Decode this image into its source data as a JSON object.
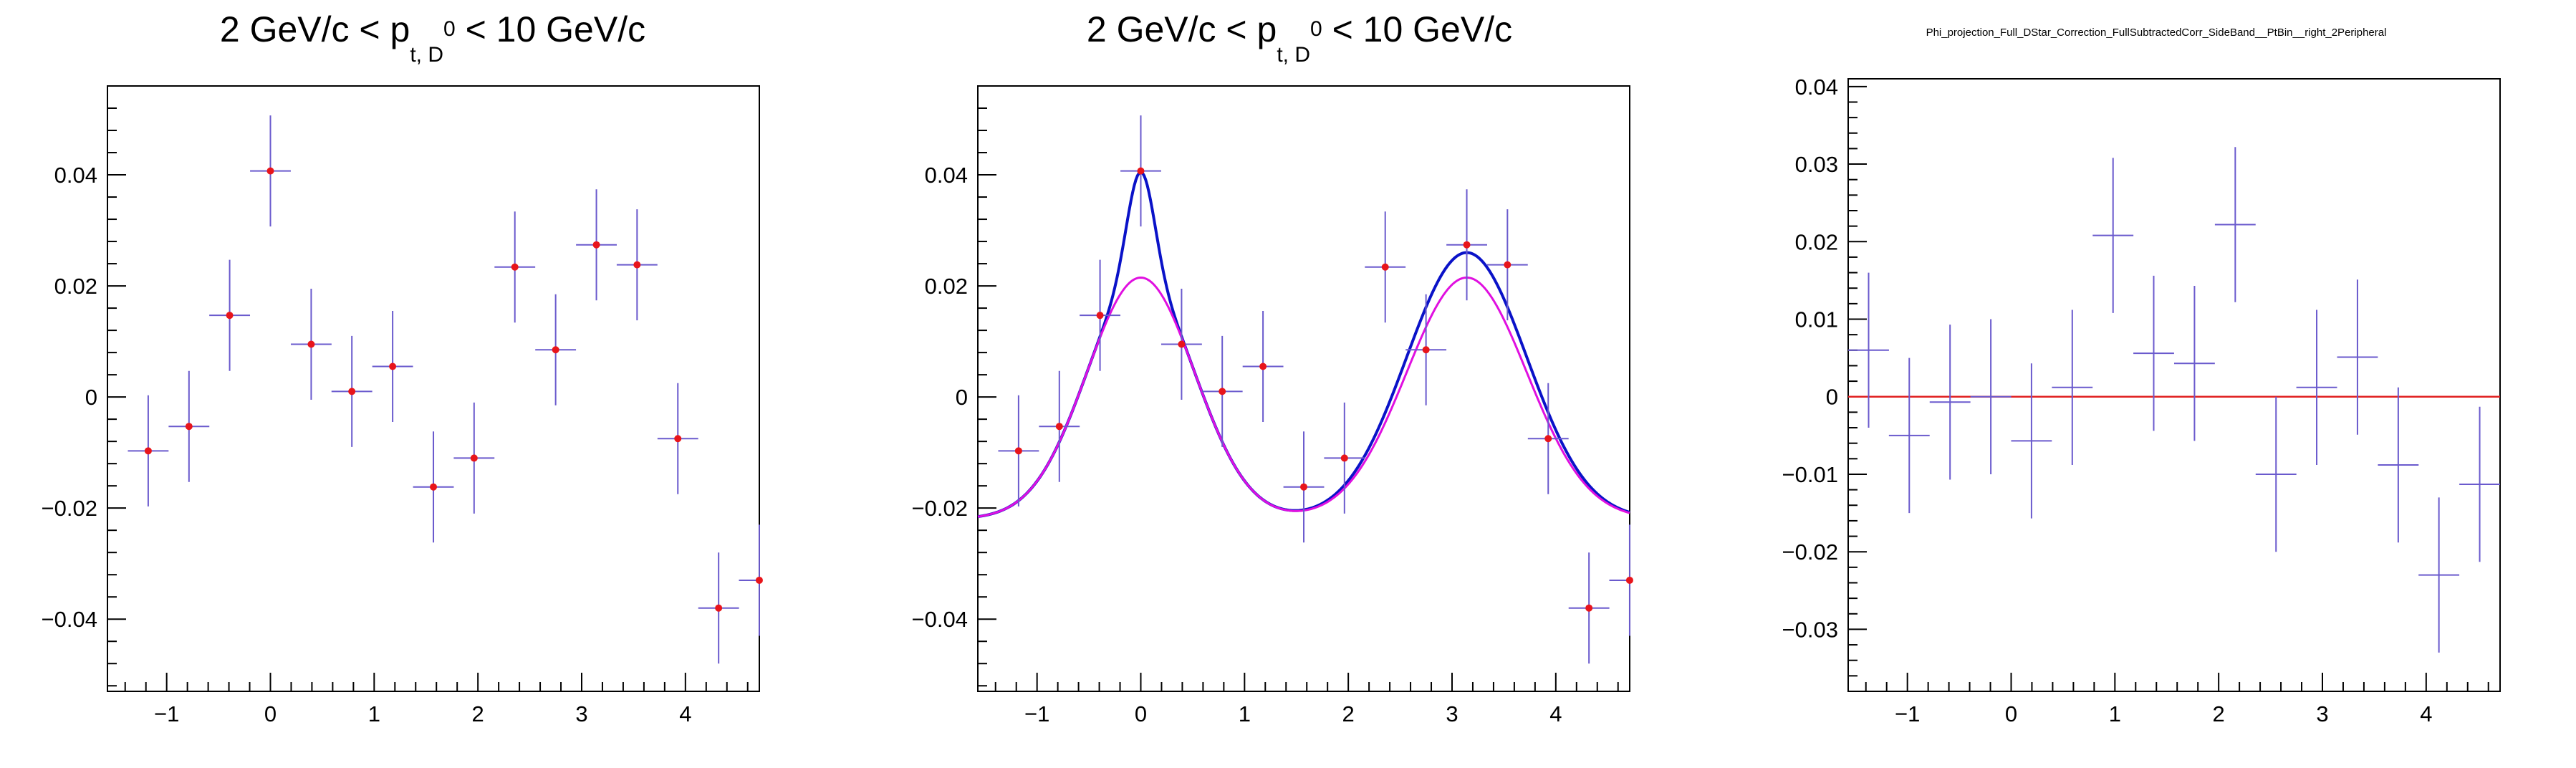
{
  "chart_data": [
    {
      "type": "scatter",
      "title": "2 GeV/c < p",
      "title_subscript": "t, D",
      "title_superscript": "0",
      "title_suffix": " < 10 GeV/c",
      "xlim": [
        -1.5708,
        4.7124
      ],
      "ylim": [
        -0.053,
        0.056
      ],
      "xticks": [
        -1,
        0,
        1,
        2,
        3,
        4
      ],
      "xtick_labels": [
        "−1",
        "0",
        "1",
        "2",
        "3",
        "4"
      ],
      "yticks": [
        -0.04,
        -0.02,
        0,
        0.02,
        0.04
      ],
      "ytick_labels": [
        "−0.04",
        "−0.02",
        "0",
        "0.02",
        "0.04"
      ],
      "bin_half_width": 0.1963,
      "marker_color": "#e8151b",
      "error_color": "#6a5acd",
      "series": [
        {
          "x": [
            -1.178,
            -0.785,
            -0.393,
            0.0,
            0.393,
            0.785,
            1.178,
            1.571,
            1.963,
            2.356,
            2.749,
            3.142,
            3.534,
            3.927,
            4.32,
            4.712
          ],
          "values": [
            -0.0097,
            -0.0053,
            0.0147,
            0.0407,
            0.0095,
            0.001,
            0.0055,
            -0.0162,
            -0.011,
            0.0234,
            0.0085,
            0.0274,
            0.0238,
            -0.0075,
            -0.038,
            -0.033
          ],
          "errors": [
            0.01,
            0.01,
            0.01,
            0.01,
            0.01,
            0.01,
            0.01,
            0.01,
            0.01,
            0.01,
            0.01,
            0.01,
            0.01,
            0.01,
            0.01,
            0.01
          ]
        }
      ]
    },
    {
      "type": "scatter",
      "title": "2 GeV/c < p",
      "title_subscript": "t, D",
      "title_superscript": "0",
      "title_suffix": " < 10 GeV/c",
      "xlim": [
        -1.5708,
        4.7124
      ],
      "ylim": [
        -0.053,
        0.056
      ],
      "xticks": [
        -1,
        0,
        1,
        2,
        3,
        4
      ],
      "xtick_labels": [
        "−1",
        "0",
        "1",
        "2",
        "3",
        "4"
      ],
      "yticks": [
        -0.04,
        -0.02,
        0,
        0.02,
        0.04
      ],
      "ytick_labels": [
        "−0.04",
        "−0.02",
        "0",
        "0.02",
        "0.04"
      ],
      "bin_half_width": 0.1963,
      "marker_color": "#e8151b",
      "error_color": "#6a5acd",
      "series": [
        {
          "x": [
            -1.178,
            -0.785,
            -0.393,
            0.0,
            0.393,
            0.785,
            1.178,
            1.571,
            1.963,
            2.356,
            2.749,
            3.142,
            3.534,
            3.927,
            4.32,
            4.712
          ],
          "values": [
            -0.0097,
            -0.0053,
            0.0147,
            0.0407,
            0.0095,
            0.001,
            0.0055,
            -0.0162,
            -0.011,
            0.0234,
            0.0085,
            0.0274,
            0.0238,
            -0.0075,
            -0.038,
            -0.033
          ],
          "errors": [
            0.01,
            0.01,
            0.01,
            0.01,
            0.01,
            0.01,
            0.01,
            0.01,
            0.01,
            0.01,
            0.01,
            0.01,
            0.01,
            0.01,
            0.01,
            0.01
          ]
        }
      ],
      "fit_curves": [
        {
          "color": "#0a12c8",
          "baseline": -0.022,
          "near_amplitude": 0.0435,
          "near_mean": 0.0,
          "near_sigma_broad": 0.52,
          "near_narrow_amplitude": 0.019,
          "near_sigma_narrow": 0.13,
          "away_amplitude": 0.048,
          "away_mean": 3.1416,
          "away_sigma": 0.58
        },
        {
          "color": "#e010e0",
          "baseline": -0.022,
          "near_amplitude": 0.0435,
          "near_mean": 0.0,
          "near_sigma_broad": 0.52,
          "near_narrow_amplitude": 0.0,
          "near_sigma_narrow": 0.13,
          "away_amplitude": 0.0435,
          "away_mean": 3.1416,
          "away_sigma": 0.58
        }
      ]
    },
    {
      "type": "scatter",
      "title": "Phi_projection_Full_DStar_Correction_FullSubtractedCorr_SideBand__PtBin__right_2Peripheral",
      "xlim": [
        -1.5708,
        4.7124
      ],
      "ylim": [
        -0.038,
        0.041
      ],
      "xticks": [
        -1,
        0,
        1,
        2,
        3,
        4
      ],
      "xtick_labels": [
        "−1",
        "0",
        "1",
        "2",
        "3",
        "4"
      ],
      "yticks": [
        -0.03,
        -0.02,
        -0.01,
        0,
        0.01,
        0.02,
        0.03,
        0.04
      ],
      "ytick_labels": [
        "−0.03",
        "−0.02",
        "−0.01",
        "0",
        "0.01",
        "0.02",
        "0.03",
        "0.04"
      ],
      "bin_half_width": 0.1963,
      "error_color": "#6a5acd",
      "reference_line": {
        "y": 0,
        "color": "#e02020"
      },
      "series": [
        {
          "x": [
            -1.374,
            -0.982,
            -0.589,
            -0.196,
            0.196,
            0.589,
            0.982,
            1.374,
            1.767,
            2.16,
            2.553,
            2.945,
            3.338,
            3.731,
            4.123,
            4.516
          ],
          "values": [
            0.006,
            -0.005,
            -0.0007,
            0.0,
            -0.0057,
            0.0012,
            0.0208,
            0.0056,
            0.0043,
            0.0222,
            -0.01,
            0.0012,
            0.0051,
            -0.0088,
            -0.023,
            -0.0113
          ],
          "errors": [
            0.01,
            0.01,
            0.01,
            0.01,
            0.01,
            0.01,
            0.01,
            0.01,
            0.01,
            0.01,
            0.01,
            0.01,
            0.01,
            0.01,
            0.01,
            0.01
          ]
        }
      ]
    }
  ]
}
